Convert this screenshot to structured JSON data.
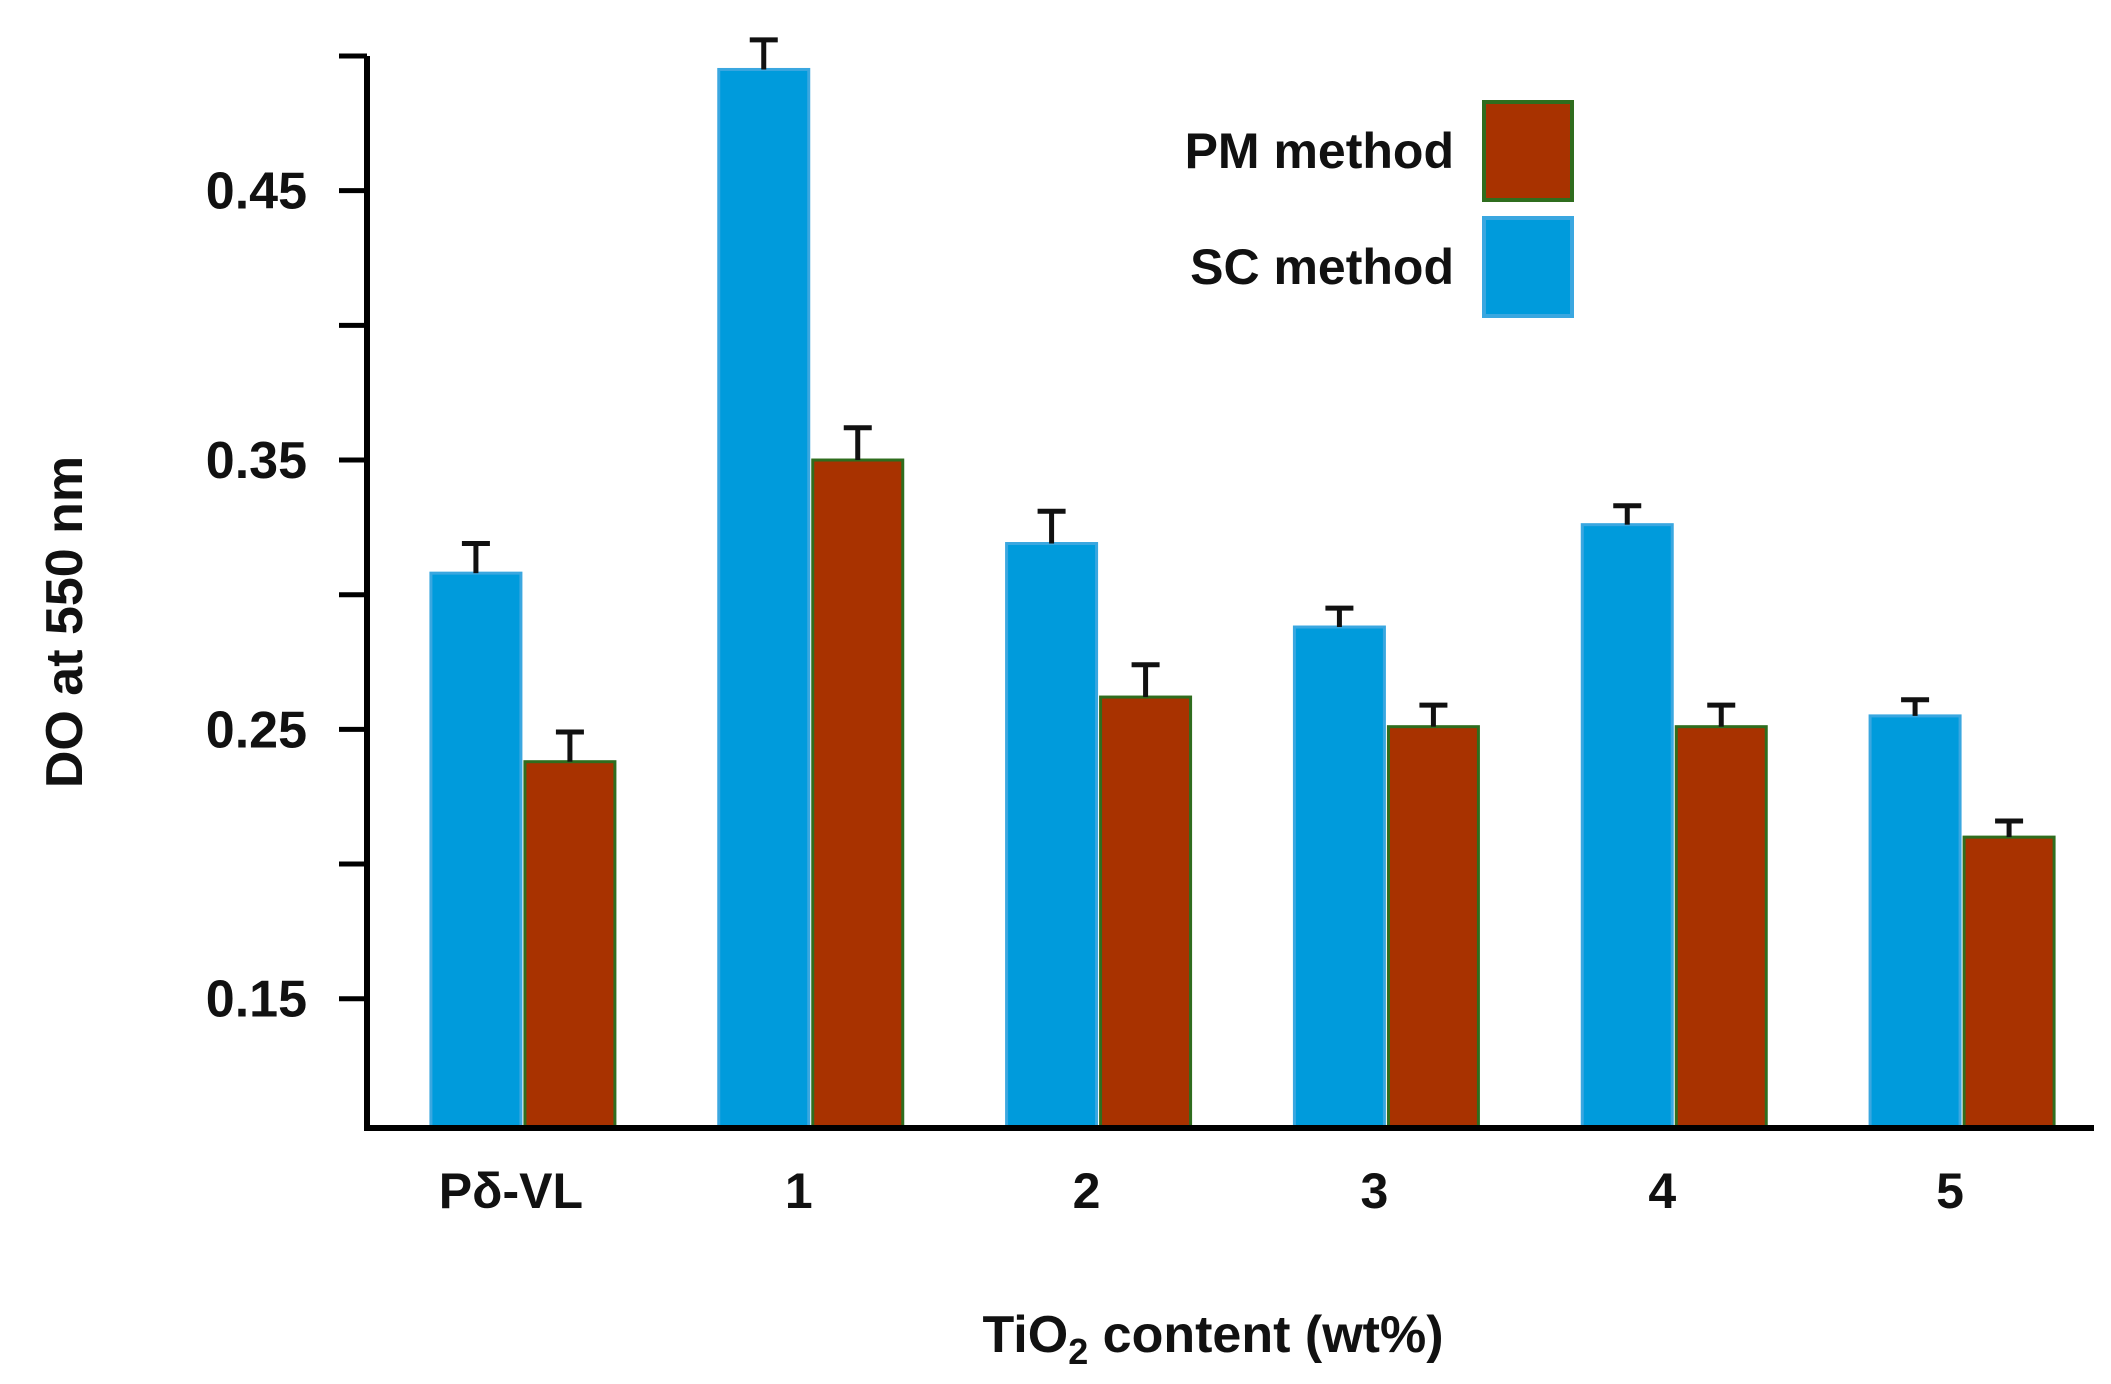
{
  "chart_data": {
    "type": "bar",
    "xlabel_main": "TiO",
    "xlabel_sub": "2",
    "xlabel_rest": " content (wt%)",
    "ylabel": "DO  at 550 nm",
    "categories": [
      "Pδ-VL",
      "1",
      "2",
      "3",
      "4",
      "5"
    ],
    "ylim": [
      0.102,
      0.5
    ],
    "yticks": [
      0.15,
      0.25,
      0.35,
      0.45
    ],
    "ytick_labels": [
      "0.15",
      "0.25",
      "0.35",
      "0.45"
    ],
    "yminor_ticks": [
      0.2,
      0.3,
      0.4,
      0.5
    ],
    "series": [
      {
        "name": "SC  method",
        "color": "#009bdc",
        "values": [
          0.308,
          0.495,
          0.319,
          0.288,
          0.326,
          0.255
        ],
        "errors": [
          0.011,
          0.011,
          0.012,
          0.007,
          0.007,
          0.006
        ]
      },
      {
        "name": "PM method",
        "color": "#a83200",
        "values": [
          0.238,
          0.35,
          0.262,
          0.251,
          0.251,
          0.21
        ],
        "errors": [
          0.011,
          0.012,
          0.012,
          0.008,
          0.008,
          0.006
        ]
      }
    ],
    "legend": {
      "position": "top-right",
      "order": [
        1,
        0
      ]
    },
    "grid": false
  }
}
